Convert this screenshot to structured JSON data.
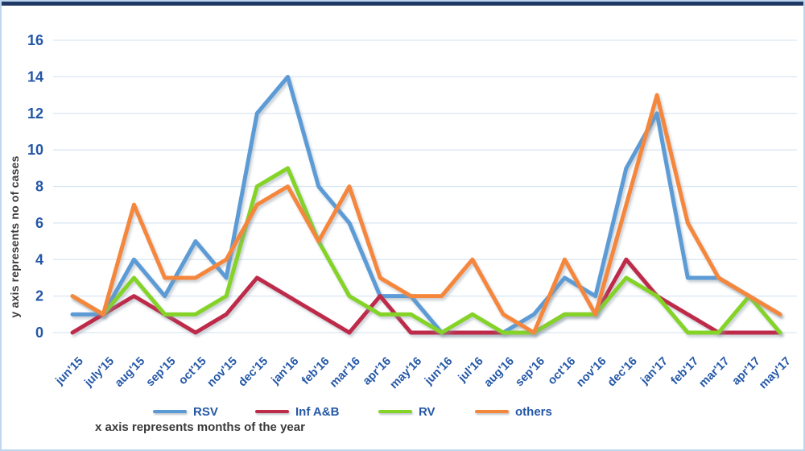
{
  "figure": {
    "y_axis_title": "y axis represents no of cases",
    "x_axis_title": "x axis represents months of the year"
  },
  "colors": {
    "top_bar": "#1F3864",
    "frame": "#BDD7EE",
    "grid": "#D9E6F3",
    "tick_text": "#2457A7",
    "axis_title_text": "#3A3A3A"
  },
  "chart_data": {
    "type": "line",
    "title": "",
    "xlabel": "x axis represents months of the year",
    "ylabel": "y axis represents no of cases",
    "categories": [
      "jun'15",
      "july'15",
      "aug'15",
      "sep'15",
      "oct'15",
      "nov'15",
      "dec'15",
      "jan'16",
      "feb'16",
      "mar'16",
      "apr'16",
      "may'16",
      "jun'16",
      "jul'16",
      "aug'16",
      "sep'16",
      "oct'16",
      "nov'16",
      "dec'16",
      "jan'17",
      "feb'17",
      "mar'17",
      "apr'17",
      "may'17"
    ],
    "series": [
      {
        "name": "RSV",
        "color": "#5B9BD5",
        "values": [
          1,
          1,
          4,
          2,
          5,
          3,
          12,
          14,
          8,
          6,
          2,
          2,
          0,
          0,
          0,
          1,
          3,
          2,
          9,
          12,
          3,
          3,
          2,
          1
        ]
      },
      {
        "name": "Inf A&B",
        "color": "#BE2B49",
        "values": [
          0,
          1,
          2,
          1,
          0,
          1,
          3,
          2,
          1,
          0,
          2,
          0,
          0,
          0,
          0,
          0,
          1,
          1,
          4,
          2,
          1,
          0,
          0,
          0
        ]
      },
      {
        "name": "RV",
        "color": "#84D327",
        "values": [
          2,
          1,
          3,
          1,
          1,
          2,
          8,
          9,
          5,
          2,
          1,
          1,
          0,
          1,
          0,
          0,
          1,
          1,
          3,
          2,
          0,
          0,
          2,
          0
        ]
      },
      {
        "name": "others",
        "color": "#F5873C",
        "values": [
          2,
          1,
          7,
          3,
          3,
          4,
          7,
          8,
          5,
          8,
          3,
          2,
          2,
          4,
          1,
          0,
          4,
          1,
          7,
          13,
          6,
          3,
          2,
          1
        ]
      }
    ],
    "ylim": [
      0,
      16
    ],
    "yticks": [
      0,
      2,
      4,
      6,
      8,
      10,
      12,
      14,
      16
    ],
    "grid": "horizontal",
    "legend_position": "bottom"
  }
}
